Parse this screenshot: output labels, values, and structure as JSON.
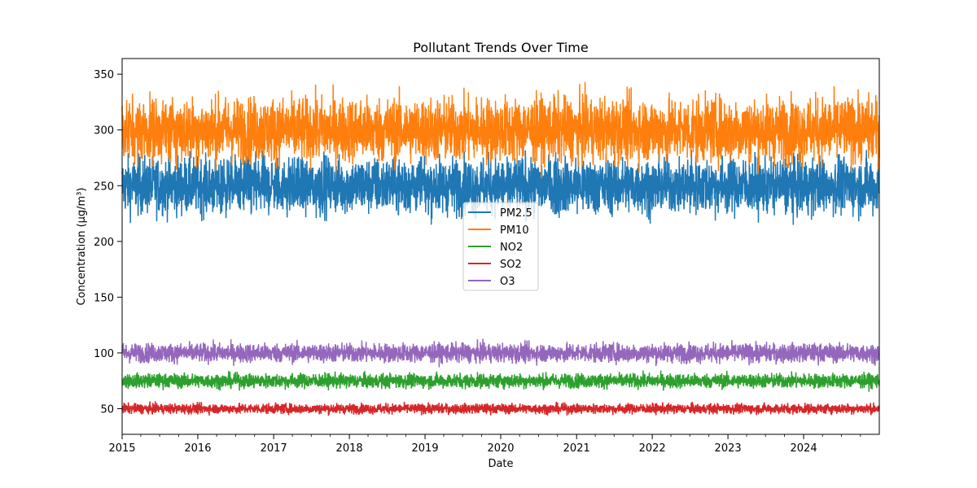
{
  "chart_data": {
    "type": "line",
    "title": "Pollutant Trends Over Time",
    "xlabel": "Date",
    "ylabel": "Concentration (µg/m³)",
    "xlim": [
      "2015-01-01",
      "2024-12-31"
    ],
    "ylim": [
      27,
      364
    ],
    "x_ticks": [
      "2015",
      "2016",
      "2017",
      "2018",
      "2019",
      "2020",
      "2021",
      "2022",
      "2023",
      "2024"
    ],
    "y_ticks": [
      50,
      100,
      150,
      200,
      250,
      300,
      350
    ],
    "grid": false,
    "legend_position": "center",
    "series": [
      {
        "name": "PM2.5",
        "color": "#1f77b4",
        "mean": 250,
        "min": 193,
        "max": 282
      },
      {
        "name": "PM10",
        "color": "#ff7f0e",
        "mean": 300,
        "min": 248,
        "max": 349
      },
      {
        "name": "NO2",
        "color": "#2ca02c",
        "mean": 75,
        "min": 64,
        "max": 87
      },
      {
        "name": "SO2",
        "color": "#d62728",
        "mean": 50,
        "min": 42,
        "max": 58
      },
      {
        "name": "O3",
        "color": "#9467bd",
        "mean": 100,
        "min": 86,
        "max": 116
      }
    ]
  }
}
